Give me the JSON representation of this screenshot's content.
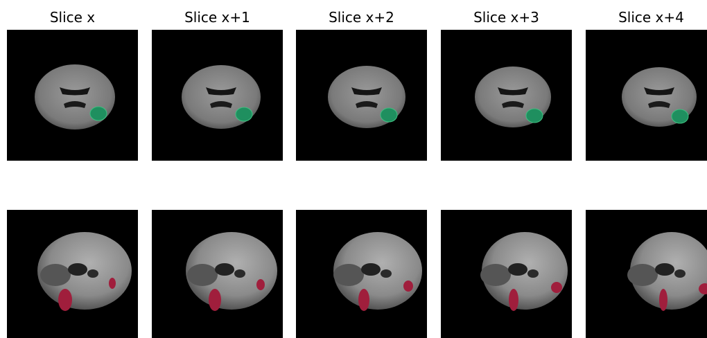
{
  "titles": [
    "Slice x",
    "Slice x+1",
    "Slice x+2",
    "Slice x+3",
    "Slice x+4"
  ]
}
